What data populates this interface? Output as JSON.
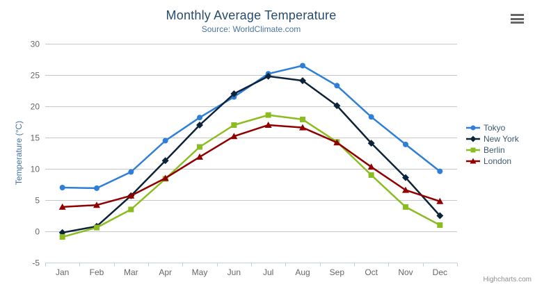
{
  "chart_data": {
    "type": "line",
    "title": "Monthly Average Temperature",
    "subtitle": "Source: WorldClimate.com",
    "categories": [
      "Jan",
      "Feb",
      "Mar",
      "Apr",
      "May",
      "Jun",
      "Jul",
      "Aug",
      "Sep",
      "Oct",
      "Nov",
      "Dec"
    ],
    "series": [
      {
        "name": "Tokyo",
        "color": "#2f7ed8",
        "marker": "circle",
        "values": [
          7.0,
          6.9,
          9.5,
          14.5,
          18.2,
          21.5,
          25.2,
          26.5,
          23.3,
          18.3,
          13.9,
          9.6
        ]
      },
      {
        "name": "New York",
        "color": "#0d233a",
        "marker": "diamond",
        "values": [
          -0.2,
          0.8,
          5.7,
          11.3,
          17.0,
          22.0,
          24.8,
          24.1,
          20.1,
          14.1,
          8.6,
          2.5
        ]
      },
      {
        "name": "Berlin",
        "color": "#8bbc21",
        "marker": "square",
        "values": [
          -0.9,
          0.6,
          3.5,
          8.4,
          13.5,
          17.0,
          18.6,
          17.9,
          14.3,
          9.0,
          3.9,
          1.0
        ]
      },
      {
        "name": "London",
        "color": "#910000",
        "marker": "triangle-up",
        "values": [
          3.9,
          4.2,
          5.7,
          8.5,
          11.9,
          15.2,
          17.0,
          16.6,
          14.2,
          10.3,
          6.6,
          4.8
        ]
      }
    ],
    "xlabel": "",
    "ylabel": "Temperature (°C)",
    "ylim": [
      -5,
      30
    ],
    "yticks": [
      -5,
      0,
      5,
      10,
      15,
      20,
      25,
      30
    ],
    "grid": true,
    "legend_position": "right"
  },
  "credits": {
    "label": "Highcharts.com"
  },
  "icons": {
    "context_menu": "hamburger-icon"
  },
  "colors": {
    "title": "#274b6d",
    "subtitle": "#4d759e",
    "axis_title": "#4572a7",
    "tick_label": "#666666",
    "grid": "#c7c7c7",
    "axis_line": "#c0d0e0",
    "legend_text": "#3e576f",
    "credits": "#909090",
    "menu_icon": "#666666",
    "background": "#ffffff"
  }
}
